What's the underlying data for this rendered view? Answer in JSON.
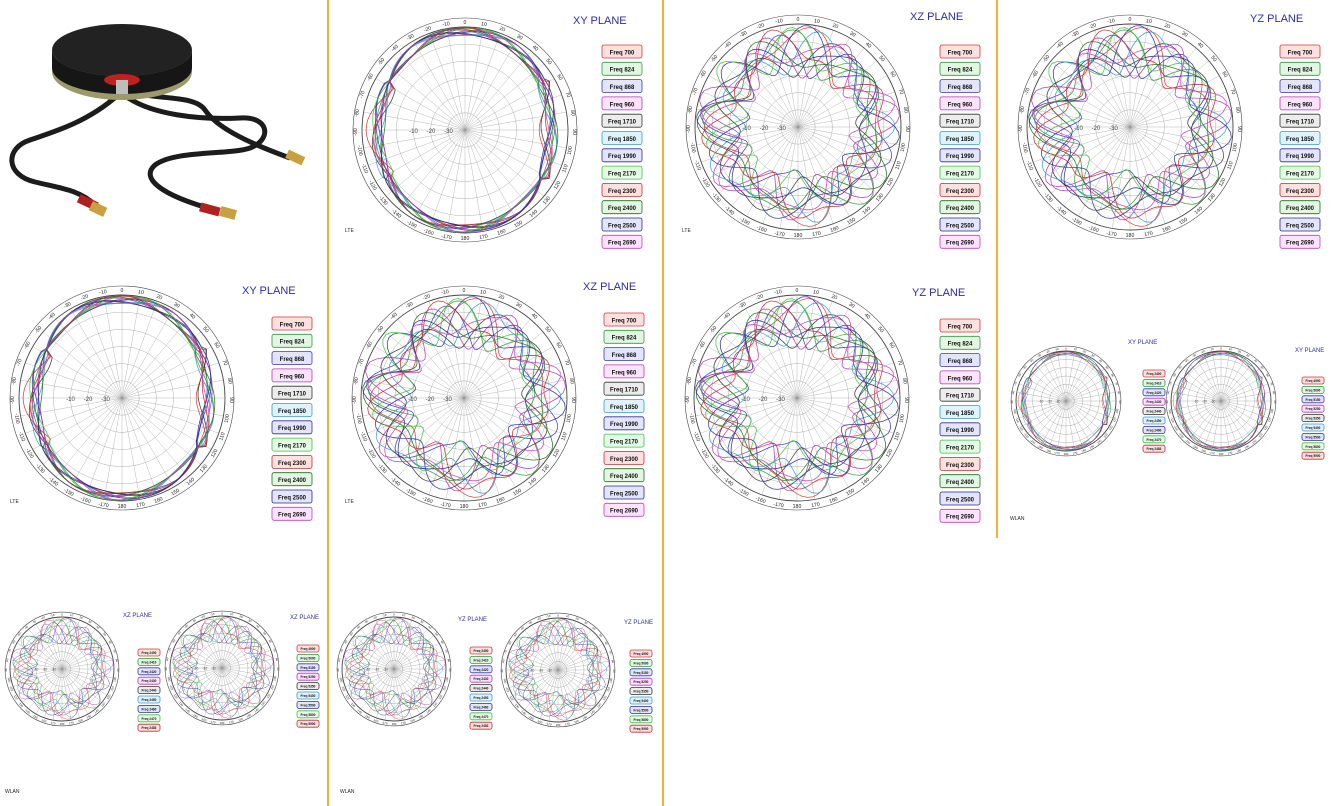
{
  "colors": {
    "divider": "#f2b233",
    "title": "#2e2e9a",
    "grid": "#9a9a9a",
    "series": [
      "#d23b3b",
      "#2f9a3a",
      "#3a3ab0",
      "#b03ab0",
      "#333333",
      "#3a9ad0",
      "#2e2e9a",
      "#40c040",
      "#c03030",
      "#1e6e1e",
      "#2a2a8a",
      "#c040c0"
    ],
    "legend_fills": [
      "#fde0e0",
      "#e3f6e3",
      "#e3e6fb",
      "#fbe3fb",
      "#ececec",
      "#e0f2fc",
      "#e3e6fb",
      "#e6fbe6",
      "#fde0e0",
      "#e3f6e3",
      "#e3e6fb",
      "#fbe3fb"
    ]
  },
  "product_image": {
    "icon": "round-puck-antenna-with-three-cables",
    "body_color": "#222222",
    "connector_color": "#c8a040",
    "boot_color": "#b02020"
  },
  "lte_legend": [
    "Freq 700",
    "Freq 824",
    "Freq 868",
    "Freq 960",
    "Freq 1710",
    "Freq 1850",
    "Freq 1990",
    "Freq 2170",
    "Freq 2300",
    "Freq 2400",
    "Freq 2500",
    "Freq 2690"
  ],
  "wlan_legend_a": [
    "Freq 2400",
    "Freq 2410",
    "Freq 2420",
    "Freq 2430",
    "Freq 2440",
    "Freq 2450",
    "Freq 2460",
    "Freq 2470",
    "Freq 2483"
  ],
  "wlan_legend_b": [
    "Freq 4900",
    "Freq 5000",
    "Freq 5150",
    "Freq 5250",
    "Freq 5350",
    "Freq 5400",
    "Freq 5500",
    "Freq 5800",
    "Freq 5900"
  ],
  "angle_labels": [
    "0",
    "10",
    "20",
    "30",
    "40",
    "50",
    "60",
    "70",
    "80",
    "90",
    "100",
    "110",
    "120",
    "130",
    "140",
    "150",
    "160",
    "170",
    "180",
    "-170",
    "-160",
    "-150",
    "-140",
    "-130",
    "-120",
    "-110",
    "-100",
    "-90",
    "-80",
    "-70",
    "-60",
    "-50",
    "-40",
    "-30",
    "-20",
    "-10"
  ],
  "ring_labels": [
    "-10",
    "-20",
    "-30"
  ],
  "chart_data": [
    {
      "type": "polar",
      "title": "XY PLANE",
      "note": "LTE",
      "legend": "lte_legend",
      "angular_range": [
        -180,
        180
      ],
      "radial_range_dbi": [
        -30,
        0
      ],
      "series_count": 12,
      "pattern": "omni-vertical-ellipse"
    },
    {
      "type": "polar",
      "title": "XZ PLANE",
      "note": "LTE",
      "legend": "lte_legend",
      "angular_range": [
        -180,
        180
      ],
      "radial_range_dbi": [
        -30,
        0
      ],
      "series_count": 12,
      "pattern": "lobed-variable"
    },
    {
      "type": "polar",
      "title": "YZ PLANE",
      "note": "LTE",
      "legend": "lte_legend",
      "angular_range": [
        -180,
        180
      ],
      "radial_range_dbi": [
        -30,
        0
      ],
      "series_count": 12,
      "pattern": "lobed-variable"
    },
    {
      "type": "polar",
      "title": "XY PLANE",
      "note": "LTE",
      "legend": "lte_legend",
      "angular_range": [
        -180,
        180
      ],
      "radial_range_dbi": [
        -30,
        0
      ],
      "series_count": 12,
      "pattern": "omni-vertical-ellipse"
    },
    {
      "type": "polar",
      "title": "XZ PLANE",
      "note": "LTE",
      "legend": "lte_legend",
      "angular_range": [
        -180,
        180
      ],
      "radial_range_dbi": [
        -30,
        0
      ],
      "series_count": 12,
      "pattern": "lobed-variable"
    },
    {
      "type": "polar",
      "title": "YZ PLANE",
      "note": "LTE",
      "legend": "lte_legend",
      "angular_range": [
        -180,
        180
      ],
      "radial_range_dbi": [
        -30,
        0
      ],
      "series_count": 12,
      "pattern": "lobed-variable"
    },
    {
      "type": "polar",
      "title": "XY PLANE",
      "note": "WLAN",
      "legend": "wlan_legend_a",
      "angular_range": [
        -180,
        180
      ],
      "radial_range_dbi": [
        -30,
        0
      ],
      "series_count": 9,
      "pattern": "omni-vertical-ellipse"
    },
    {
      "type": "polar",
      "title": "XY PLANE",
      "note": "",
      "legend": "wlan_legend_b",
      "angular_range": [
        -180,
        180
      ],
      "radial_range_dbi": [
        -30,
        0
      ],
      "series_count": 9,
      "pattern": "omni-vertical-ellipse"
    },
    {
      "type": "polar",
      "title": "XZ PLANE",
      "note": "WLAN",
      "legend": "wlan_legend_a",
      "angular_range": [
        -180,
        180
      ],
      "radial_range_dbi": [
        -30,
        0
      ],
      "series_count": 9,
      "pattern": "lobed-variable"
    },
    {
      "type": "polar",
      "title": "XZ PLANE",
      "note": "",
      "legend": "wlan_legend_b",
      "angular_range": [
        -180,
        180
      ],
      "radial_range_dbi": [
        -30,
        0
      ],
      "series_count": 9,
      "pattern": "lobed-variable"
    },
    {
      "type": "polar",
      "title": "YZ PLANE",
      "note": "WLAN",
      "legend": "wlan_legend_a",
      "angular_range": [
        -180,
        180
      ],
      "radial_range_dbi": [
        -30,
        0
      ],
      "series_count": 9,
      "pattern": "lobed-variable"
    },
    {
      "type": "polar",
      "title": "YZ PLANE",
      "note": "",
      "legend": "wlan_legend_b",
      "angular_range": [
        -180,
        180
      ],
      "radial_range_dbi": [
        -30,
        0
      ],
      "series_count": 9,
      "pattern": "lobed-variable"
    }
  ]
}
